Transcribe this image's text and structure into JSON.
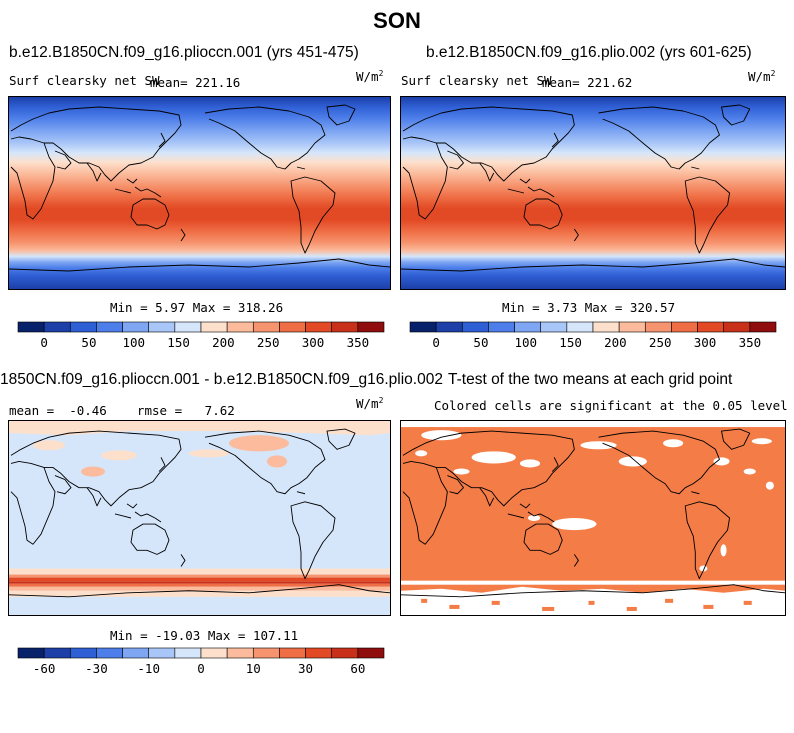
{
  "figure": {
    "title": "SON"
  },
  "panels": [
    {
      "title": "b.e12.B1850CN.f09_g16.plioccn.001 (yrs 451-475)",
      "left_label": "Surf clearsky net SW",
      "stat_label": "mean= 221.16",
      "units_base": "W/m",
      "units_exp": "2",
      "minmax": "Min =   5.97 Max = 318.26"
    },
    {
      "title": "b.e12.B1850CN.f09_g16.plio.002 (yrs 601-625)",
      "left_label": "Surf clearsky net SW",
      "stat_label": "mean= 221.62",
      "units_base": "W/m",
      "units_exp": "2",
      "minmax": "Min =   3.73 Max = 320.57"
    },
    {
      "title": "1850CN.f09_g16.plioccn.001 - b.e12.B1850CN.f09_g16.plio.002",
      "stat_label": "mean =  -0.46    rmse =   7.62",
      "units_base": "W/m",
      "units_exp": "2",
      "minmax": "Min = -19.03 Max = 107.11"
    },
    {
      "title": "T-test of the two means at each grid point",
      "subtitle": "Colored cells are significant at the 0.05 level"
    }
  ],
  "colorbars": {
    "absolute": {
      "ticks": [
        "0",
        "50",
        "100",
        "150",
        "200",
        "250",
        "300",
        "350"
      ],
      "colors": [
        "#08216b",
        "#1c3fa8",
        "#2f5fd4",
        "#4d7ee9",
        "#7ea6f2",
        "#a9c6f8",
        "#d5e6fb",
        "#fde0cc",
        "#fbbb9c",
        "#f6946f",
        "#ef6e45",
        "#e24a25",
        "#c8301a",
        "#8f0d0d"
      ]
    },
    "difference": {
      "ticks": [
        "-60",
        "-30",
        "-10",
        "0",
        "10",
        "30",
        "60"
      ],
      "colors": [
        "#08216b",
        "#1c3fa8",
        "#2f5fd4",
        "#4d7ee9",
        "#7ea6f2",
        "#a9c6f8",
        "#d5e6fb",
        "#fde0cc",
        "#fbbb9c",
        "#f6946f",
        "#ef6e45",
        "#e24a25",
        "#c8301a",
        "#8f0d0d"
      ]
    }
  },
  "chart_data": [
    {
      "type": "heatmap",
      "title": "b.e12.B1850CN.f09_g16.plioccn.001 (yrs 451-475)",
      "variable": "Surf clearsky net SW",
      "units": "W/m2",
      "mean": 221.16,
      "min": 5.97,
      "max": 318.26,
      "colorbar_ticks": [
        0,
        50,
        100,
        150,
        200,
        250,
        300,
        350
      ]
    },
    {
      "type": "heatmap",
      "title": "b.e12.B1850CN.f09_g16.plio.002 (yrs 601-625)",
      "variable": "Surf clearsky net SW",
      "units": "W/m2",
      "mean": 221.62,
      "min": 3.73,
      "max": 320.57,
      "colorbar_ticks": [
        0,
        50,
        100,
        150,
        200,
        250,
        300,
        350
      ]
    },
    {
      "type": "heatmap",
      "title": "1850CN.f09_g16.plioccn.001 - b.e12.B1850CN.f09_g16.plio.002",
      "units": "W/m2",
      "mean": -0.46,
      "rmse": 7.62,
      "min": -19.03,
      "max": 107.11,
      "colorbar_ticks": [
        -60,
        -30,
        -10,
        0,
        10,
        30,
        60
      ]
    },
    {
      "type": "heatmap",
      "title": "T-test of the two means at each grid point",
      "significance_level": 0.05
    }
  ]
}
